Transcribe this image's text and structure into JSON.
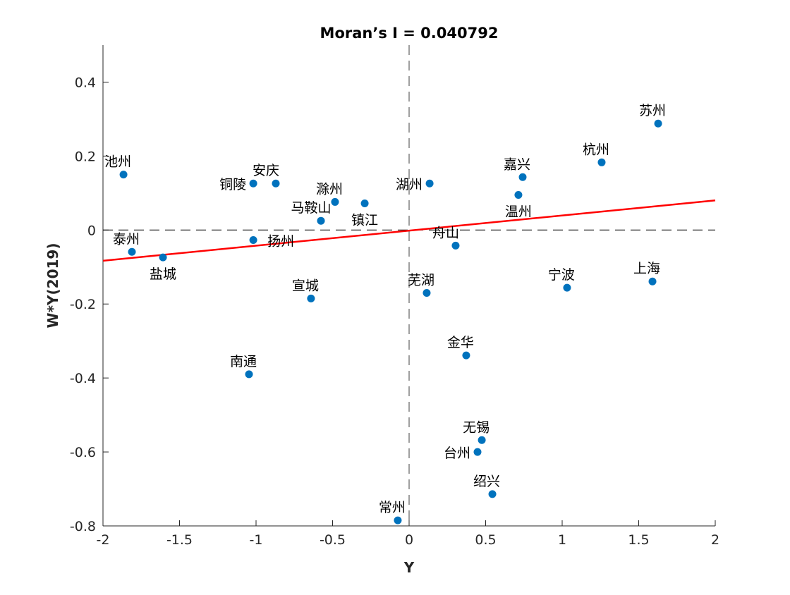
{
  "chart_data": {
    "type": "scatter",
    "title": "Moran’s I = 0.040792",
    "xlabel": "Y",
    "ylabel": "W*Y(2019)",
    "xlim": [
      -2,
      2
    ],
    "ylim": [
      -0.8,
      0.5
    ],
    "xticks": [
      -2,
      -1.5,
      -1,
      -0.5,
      0,
      0.5,
      1,
      1.5,
      2
    ],
    "xtick_labels": [
      "-2",
      "-1.5",
      "-1",
      "-0.5",
      "0",
      "0.5",
      "1",
      "1.5",
      "2"
    ],
    "yticks": [
      -0.8,
      -0.6,
      -0.4,
      -0.2,
      0,
      0.2,
      0.4
    ],
    "ytick_labels": [
      "-0.8",
      "-0.6",
      "-0.4",
      "-0.2",
      "0",
      "0.2",
      "0.4"
    ],
    "grid": false,
    "point_color": "#0072BD",
    "fit_line": {
      "slope": 0.040792,
      "intercept": -0.0015,
      "color": "#FF0000"
    },
    "points": [
      {
        "name": "池州",
        "x": -1.866,
        "y": 0.15,
        "label_pos": "above"
      },
      {
        "name": "泰州",
        "x": -1.811,
        "y": -0.059,
        "label_pos": "above"
      },
      {
        "name": "盐城",
        "x": -1.608,
        "y": -0.074,
        "label_pos": "below"
      },
      {
        "name": "铜陵",
        "x": -1.018,
        "y": 0.126,
        "label_pos": "left"
      },
      {
        "name": "安庆",
        "x": -0.871,
        "y": 0.126,
        "label_pos": "above-left"
      },
      {
        "name": "扬州",
        "x": -1.018,
        "y": -0.027,
        "label_pos": "right"
      },
      {
        "name": "马鞍山",
        "x": -0.576,
        "y": 0.025,
        "label_pos": "above-left"
      },
      {
        "name": "滁州",
        "x": -0.484,
        "y": 0.076,
        "label_pos": "above"
      },
      {
        "name": "镇江",
        "x": -0.29,
        "y": 0.072,
        "label_pos": "below"
      },
      {
        "name": "宣城",
        "x": -0.641,
        "y": -0.185,
        "label_pos": "above"
      },
      {
        "name": "南通",
        "x": -1.046,
        "y": -0.39,
        "label_pos": "above"
      },
      {
        "name": "常州",
        "x": -0.074,
        "y": -0.785,
        "label_pos": "above"
      },
      {
        "name": "湖州",
        "x": 0.134,
        "y": 0.126,
        "label_pos": "left"
      },
      {
        "name": "芜湖",
        "x": 0.115,
        "y": -0.17,
        "label_pos": "above"
      },
      {
        "name": "舟山",
        "x": 0.304,
        "y": -0.042,
        "label_pos": "above-left"
      },
      {
        "name": "金华",
        "x": 0.373,
        "y": -0.339,
        "label_pos": "above"
      },
      {
        "name": "无锡",
        "x": 0.475,
        "y": -0.568,
        "label_pos": "above"
      },
      {
        "name": "台州",
        "x": 0.447,
        "y": -0.6,
        "label_pos": "left"
      },
      {
        "name": "绍兴",
        "x": 0.544,
        "y": -0.714,
        "label_pos": "above"
      },
      {
        "name": "嘉兴",
        "x": 0.742,
        "y": 0.143,
        "label_pos": "above"
      },
      {
        "name": "温州",
        "x": 0.714,
        "y": 0.095,
        "label_pos": "below"
      },
      {
        "name": "杭州",
        "x": 1.258,
        "y": 0.183,
        "label_pos": "above"
      },
      {
        "name": "苏州",
        "x": 1.627,
        "y": 0.288,
        "label_pos": "above"
      },
      {
        "name": "宁波",
        "x": 1.032,
        "y": -0.156,
        "label_pos": "above"
      },
      {
        "name": "上海",
        "x": 1.59,
        "y": -0.139,
        "label_pos": "above"
      }
    ]
  }
}
